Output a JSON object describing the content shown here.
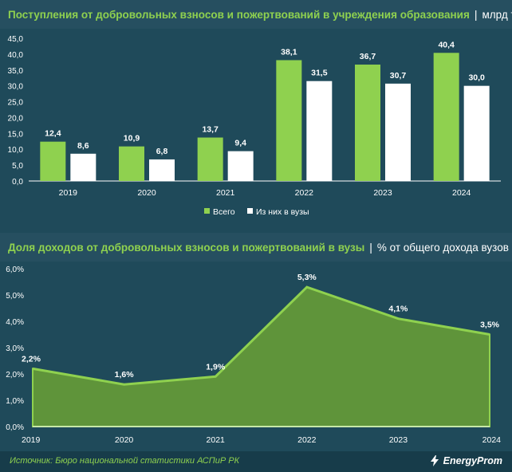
{
  "chart_top": {
    "title": "Поступления от добровольных взносов и пожертвований в учреждения образования",
    "unit": "млрд тг"
  },
  "chart_bottom": {
    "title": "Доля доходов от добровольных взносов и пожертвований в вузы",
    "unit": "% от общего дохода вузов"
  },
  "footer": {
    "source": "Источник: Бюро национальной статистики АСПиР РК",
    "logo": "EnergyProm"
  },
  "colors": {
    "background": "#1f4a5a",
    "green": "#8fd14f",
    "white": "#ffffff"
  },
  "chart_data": [
    {
      "type": "bar",
      "categories": [
        "2019",
        "2020",
        "2021",
        "2022",
        "2023",
        "2024"
      ],
      "series": [
        {
          "name": "Всего",
          "values": [
            12.4,
            10.9,
            13.7,
            38.1,
            36.7,
            40.4
          ],
          "labels": [
            "12,4",
            "10,9",
            "13,7",
            "38,1",
            "36,7",
            "40,4"
          ],
          "color": "#8fd14f"
        },
        {
          "name": "Из них в вузы",
          "values": [
            8.6,
            6.8,
            9.4,
            31.5,
            30.7,
            30.0
          ],
          "labels": [
            "8,6",
            "6,8",
            "9,4",
            "31,5",
            "30,7",
            "30,0"
          ],
          "color": "#ffffff"
        }
      ],
      "ylim": [
        0,
        45
      ],
      "yticks": [
        "0,0",
        "5,0",
        "10,0",
        "15,0",
        "20,0",
        "25,0",
        "30,0",
        "35,0",
        "40,0",
        "45,0"
      ],
      "legend": "bottom",
      "grid": false
    },
    {
      "type": "area",
      "x": [
        "2019",
        "2020",
        "2021",
        "2022",
        "2023",
        "2024"
      ],
      "values": [
        2.2,
        1.6,
        1.9,
        5.3,
        4.1,
        3.5
      ],
      "labels": [
        "2,2%",
        "1,6%",
        "1,9%",
        "5,3%",
        "4,1%",
        "3,5%"
      ],
      "ylim": [
        0,
        6
      ],
      "yticks": [
        "0,0%",
        "1,0%",
        "2,0%",
        "3,0%",
        "4,0%",
        "5,0%",
        "6,0%"
      ],
      "color": "#8fd14f",
      "grid": false
    }
  ]
}
